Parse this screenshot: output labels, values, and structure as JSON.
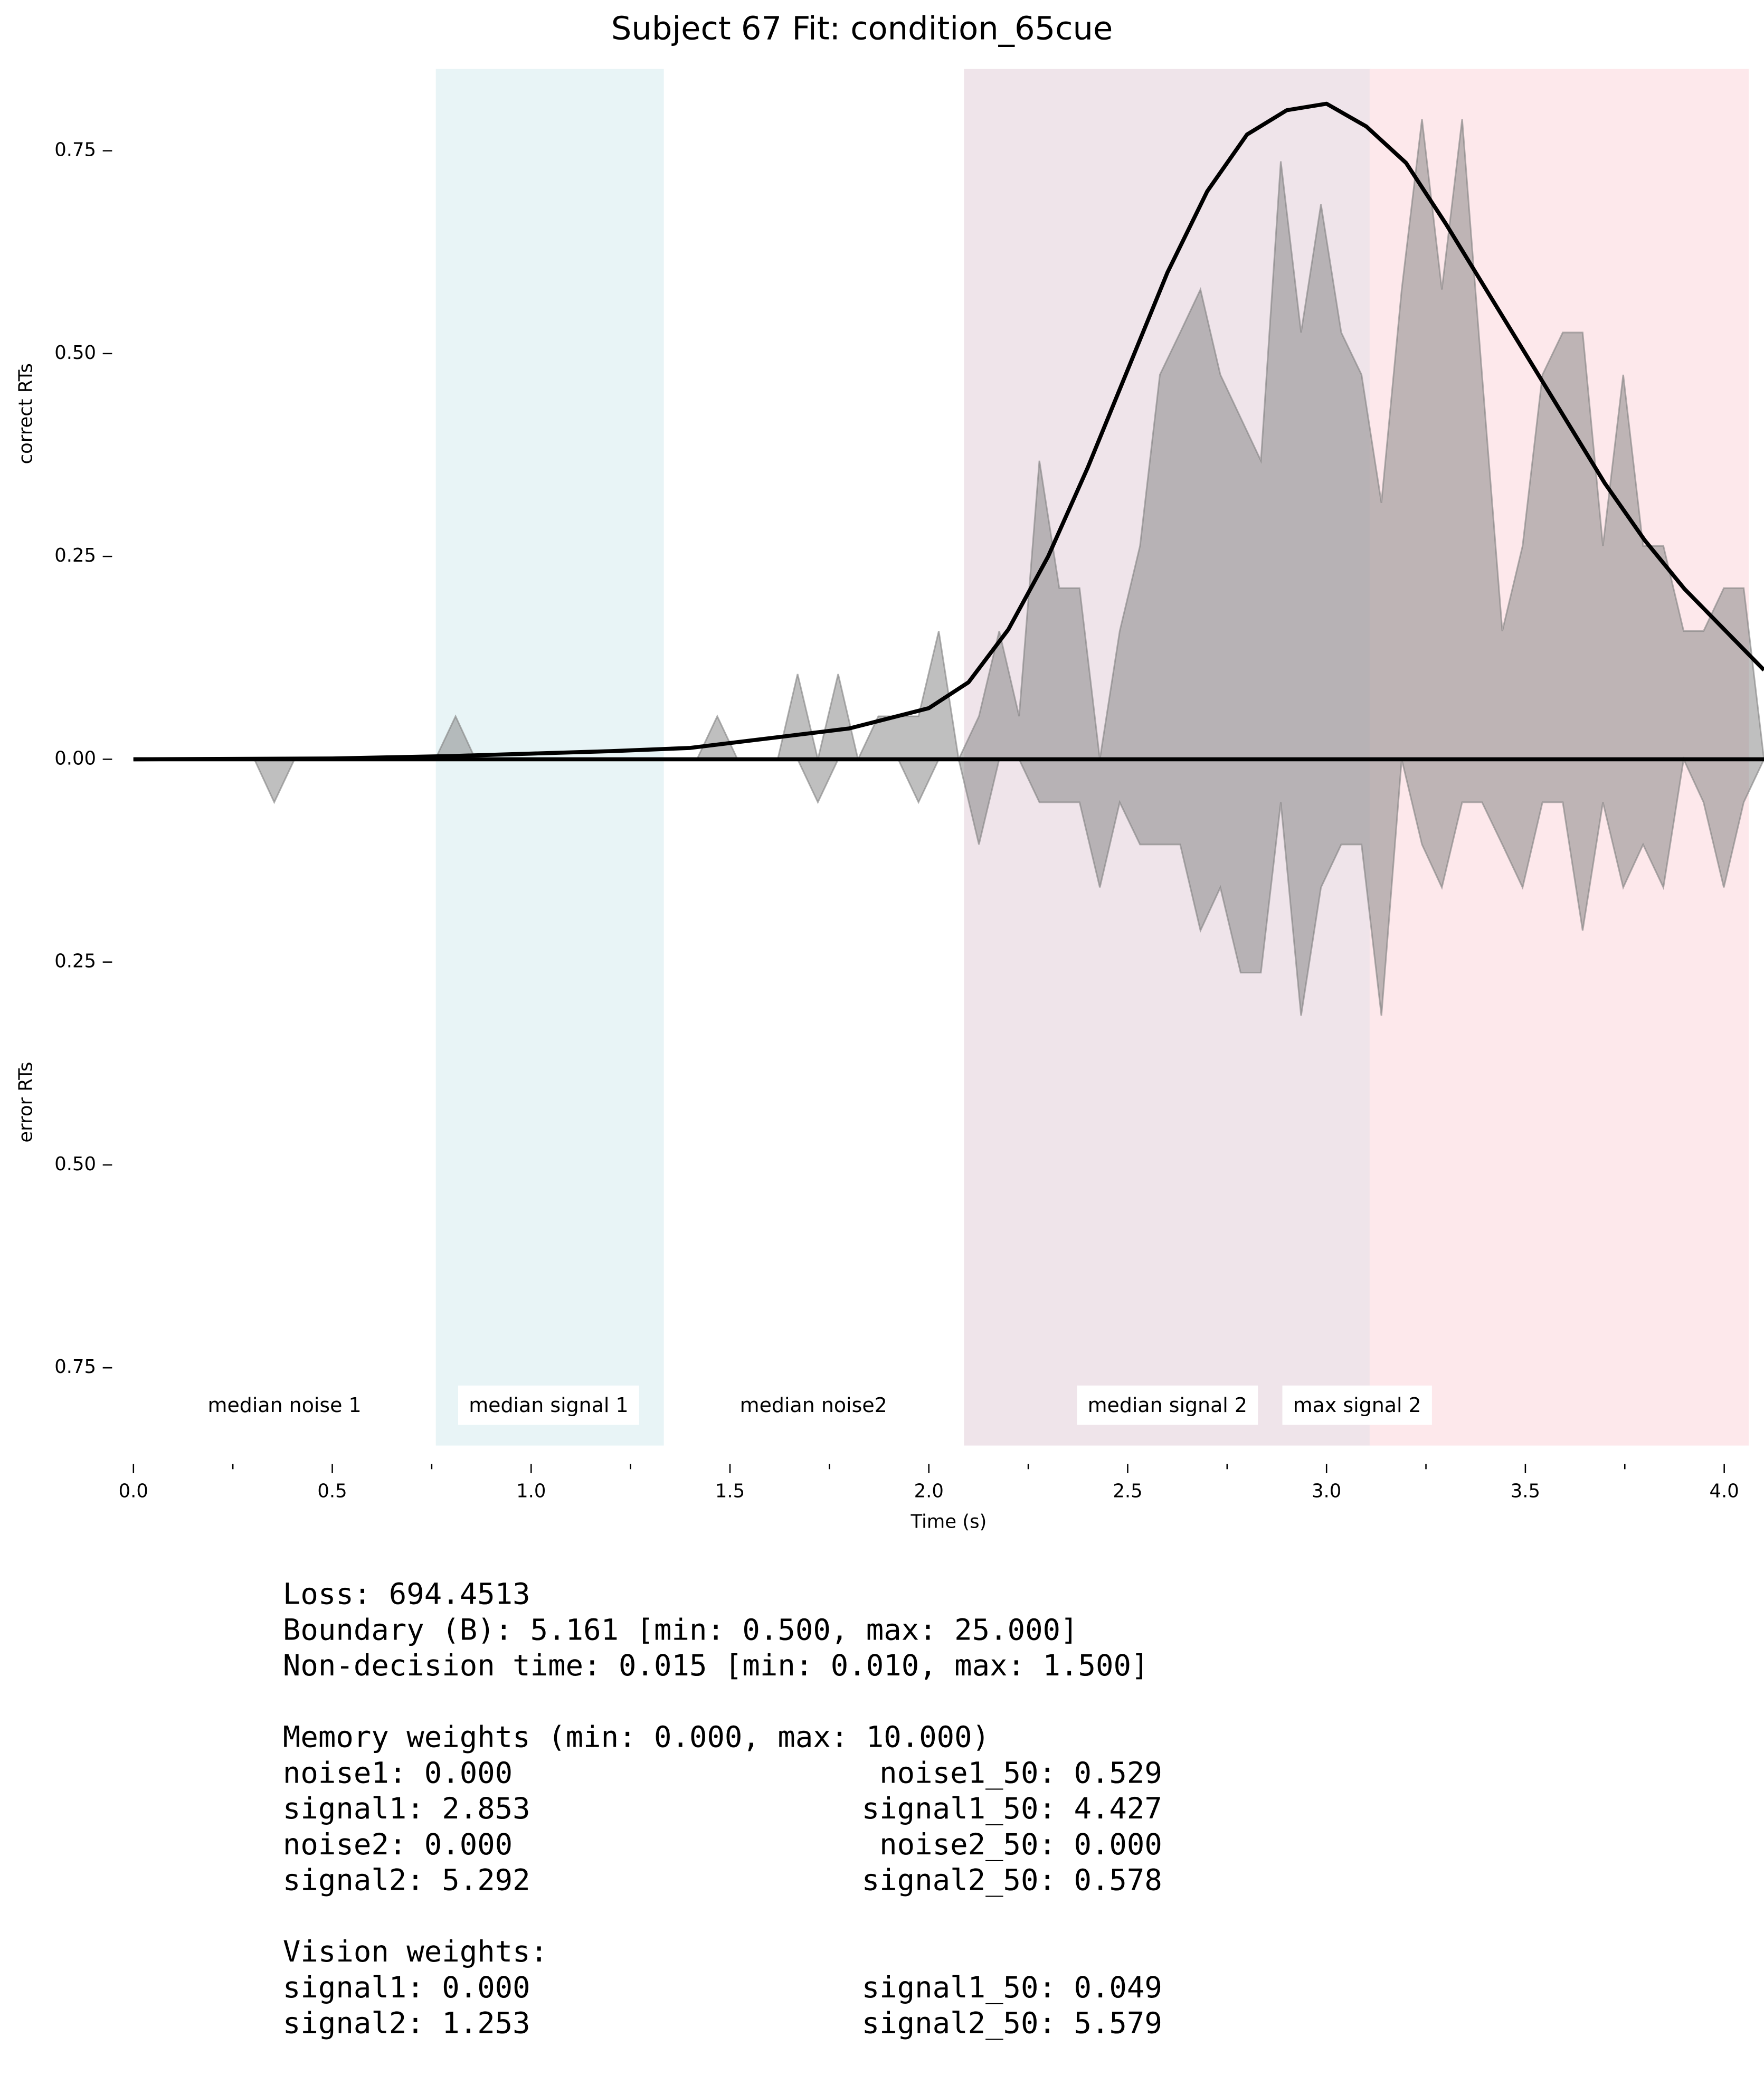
{
  "chart_data": {
    "type": "mirrored-area",
    "title": "Subject 67 Fit: condition_65cue",
    "xlabel": "Time (s)",
    "ylabels": [
      "correct RTs",
      "error RTs"
    ],
    "xlim": [
      0,
      4.1
    ],
    "ylim": [
      -0.85,
      0.85
    ],
    "xticks": [
      {
        "value": 0,
        "label": "0.0"
      },
      0.5,
      {
        "value": 1,
        "label": "1.0"
      },
      1.5,
      {
        "value": 2,
        "label": "2.0"
      },
      2.5,
      {
        "value": 3,
        "label": "3.0"
      },
      3.5,
      {
        "value": 4,
        "label": "4.0"
      }
    ],
    "xminorticks": [
      0.25,
      0.75,
      1.25,
      1.75,
      2.25,
      2.75,
      3.25,
      3.75
    ],
    "yticks": [
      0.75,
      {
        "value": 0.5,
        "label": "0.50"
      },
      0.25,
      {
        "value": 0,
        "label": "0.00"
      },
      {
        "value": -0.25,
        "label": "0.25"
      },
      {
        "value": -0.5,
        "label": "0.50"
      },
      {
        "value": -0.75,
        "label": "0.75"
      }
    ],
    "regions": [
      {
        "start": 0.762,
        "end": 1.332,
        "color": "#e8f4f6"
      },
      {
        "start": 2.09,
        "end": 3.11,
        "color": "#efe4ea"
      },
      {
        "start": 3.11,
        "end": 4.06,
        "color": "#fde8eb"
      }
    ],
    "annotations": [
      {
        "text": "median noise 1",
        "x": 0.38,
        "boxed": false
      },
      {
        "text": "median signal 1",
        "x": 1.044,
        "boxed": true
      },
      {
        "text": "median noise2",
        "x": 1.71,
        "boxed": false
      },
      {
        "text": "median signal 2",
        "x": 2.6,
        "boxed": true
      },
      {
        "text": "max signal 2",
        "x": 3.077,
        "boxed": true
      }
    ],
    "x": [
      0,
      0.051,
      0.101,
      0.152,
      0.202,
      0.253,
      0.304,
      0.354,
      0.405,
      0.456,
      0.506,
      0.557,
      0.607,
      0.658,
      0.709,
      0.759,
      0.81,
      0.86,
      0.911,
      0.962,
      1.012,
      1.063,
      1.114,
      1.164,
      1.215,
      1.265,
      1.316,
      1.367,
      1.417,
      1.468,
      1.519,
      1.569,
      1.62,
      1.67,
      1.721,
      1.772,
      1.822,
      1.873,
      1.923,
      1.974,
      2.025,
      2.075,
      2.126,
      2.177,
      2.227,
      2.278,
      2.328,
      2.379,
      2.43,
      2.48,
      2.531,
      2.581,
      2.632,
      2.683,
      2.733,
      2.784,
      2.835,
      2.885,
      2.936,
      2.986,
      3.037,
      3.088,
      3.138,
      3.189,
      3.24,
      3.29,
      3.341,
      3.391,
      3.442,
      3.493,
      3.543,
      3.594,
      3.644,
      3.695,
      3.746,
      3.796,
      3.847,
      3.898,
      3.948,
      3.999,
      4.049,
      4.1
    ],
    "series": [
      {
        "color": "#808080",
        "values": [
          0,
          0,
          0,
          0,
          0,
          0,
          0,
          0,
          0,
          0,
          0,
          0,
          0,
          0,
          0,
          0,
          0.053,
          0,
          0,
          0,
          0,
          0,
          0,
          0,
          0,
          0,
          0,
          0,
          0,
          0.053,
          0,
          0,
          0,
          0.105,
          0,
          0.105,
          0,
          0.053,
          0.053,
          0.053,
          0.158,
          0,
          0.053,
          0.158,
          0.053,
          0.368,
          0.211,
          0.211,
          0,
          0.158,
          0.263,
          0.474,
          0.526,
          0.579,
          0.474,
          0.421,
          0.368,
          0.737,
          0.526,
          0.684,
          0.526,
          0.474,
          0.316,
          0.579,
          0.789,
          0.579,
          0.789,
          0.474,
          0.158,
          0.263,
          0.474,
          0.526,
          0.526,
          0.263,
          0.474,
          0.263,
          0.263,
          0.158,
          0.158,
          0.211,
          0.211,
          0
        ]
      },
      {
        "color": "#808080",
        "values": [
          0,
          0,
          0,
          0,
          0,
          0,
          0,
          -0.053,
          0,
          0,
          0,
          0,
          0,
          0,
          0,
          0,
          0,
          0,
          0,
          0,
          0,
          0,
          0,
          0,
          0,
          0,
          0,
          0,
          0,
          0,
          0,
          0,
          0,
          0,
          -0.053,
          0,
          0,
          0,
          0,
          -0.053,
          0,
          0,
          -0.105,
          0,
          0,
          -0.053,
          -0.053,
          -0.053,
          -0.158,
          -0.053,
          -0.105,
          -0.105,
          -0.105,
          -0.211,
          -0.158,
          -0.263,
          -0.263,
          -0.053,
          -0.316,
          -0.158,
          -0.105,
          -0.105,
          -0.316,
          0,
          -0.105,
          -0.158,
          -0.053,
          -0.053,
          -0.105,
          -0.158,
          -0.053,
          -0.053,
          -0.211,
          -0.053,
          -0.158,
          -0.105,
          -0.158,
          0,
          -0.053,
          -0.158,
          -0.053,
          0
        ]
      }
    ],
    "fit": {
      "color": "#000000",
      "x": [
        0,
        0.5,
        0.8,
        1.0,
        1.2,
        1.4,
        1.6,
        1.8,
        2.0,
        2.1,
        2.2,
        2.3,
        2.4,
        2.5,
        2.6,
        2.7,
        2.8,
        2.9,
        3.0,
        3.1,
        3.2,
        3.3,
        3.4,
        3.5,
        3.6,
        3.7,
        3.8,
        3.9,
        4.0,
        4.1
      ],
      "values": [
        0,
        0.001,
        0.004,
        0.007,
        0.01,
        0.014,
        0.026,
        0.038,
        0.063,
        0.095,
        0.16,
        0.25,
        0.36,
        0.48,
        0.6,
        0.7,
        0.77,
        0.8,
        0.808,
        0.78,
        0.735,
        0.66,
        0.58,
        0.5,
        0.42,
        0.34,
        0.27,
        0.21,
        0.16,
        0.11
      ]
    }
  },
  "fit_summary": {
    "header_lines": [
      "Loss: 694.4513",
      "Boundary (B): 5.161 [min: 0.500, max: 25.000]",
      "Non-decision time: 0.015 [min: 0.010, max: 1.500]"
    ],
    "memory": {
      "heading": "Memory weights (min: 0.000, max: 10.000)",
      "rows": [
        [
          "noise1: 0.000",
          "noise1_50: 0.529"
        ],
        [
          "signal1: 2.853",
          "signal1_50: 4.427"
        ],
        [
          "noise2: 0.000",
          "noise2_50: 0.000"
        ],
        [
          "signal2: 5.292",
          "signal2_50: 0.578"
        ]
      ]
    },
    "vision": {
      "heading": "Vision weights:",
      "rows": [
        [
          "signal1: 0.000",
          "signal1_50: 0.049"
        ],
        [
          "signal2: 1.253",
          "signal2_50: 5.579"
        ]
      ]
    }
  }
}
